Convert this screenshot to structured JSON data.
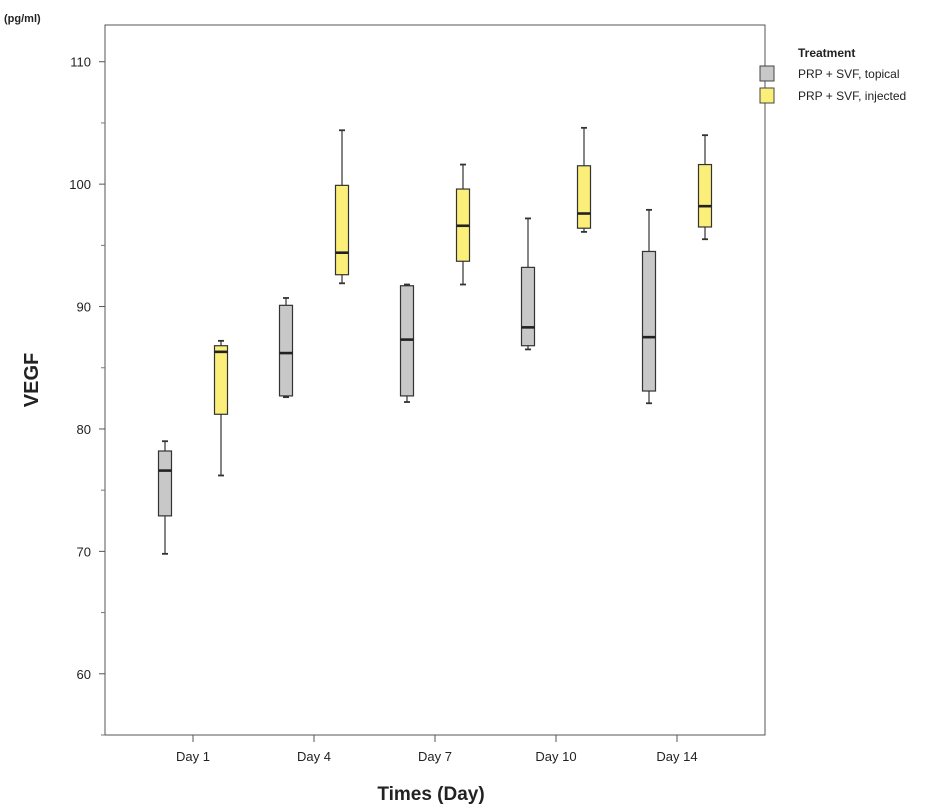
{
  "chart_data": {
    "type": "boxplot",
    "unit_label": "(pg/ml)",
    "ylabel": "VEGF",
    "xlabel": "Times (Day)",
    "ylim": [
      55,
      113
    ],
    "yticks": [
      60,
      70,
      80,
      90,
      100,
      110
    ],
    "categories": [
      "Day 1",
      "Day 4",
      "Day 7",
      "Day 10",
      "Day 14"
    ],
    "legend": {
      "title": "Treatment",
      "position": "right-top"
    },
    "series": [
      {
        "name": "PRP + SVF, topical",
        "color": "#c8c8c8",
        "boxes": [
          {
            "min": 69.8,
            "q1": 72.9,
            "median": 76.6,
            "q3": 78.2,
            "max": 79.0
          },
          {
            "min": 82.6,
            "q1": 82.7,
            "median": 86.2,
            "q3": 90.1,
            "max": 90.7
          },
          {
            "min": 82.2,
            "q1": 82.7,
            "median": 87.3,
            "q3": 91.7,
            "max": 91.8
          },
          {
            "min": 86.5,
            "q1": 86.8,
            "median": 88.3,
            "q3": 93.2,
            "max": 97.2
          },
          {
            "min": 82.1,
            "q1": 83.1,
            "median": 87.5,
            "q3": 94.5,
            "max": 97.9
          }
        ]
      },
      {
        "name": "PRP + SVF, injected",
        "color": "#fbef7a",
        "boxes": [
          {
            "min": 76.2,
            "q1": 81.2,
            "median": 86.3,
            "q3": 86.8,
            "max": 87.2
          },
          {
            "min": 91.9,
            "q1": 92.6,
            "median": 94.4,
            "q3": 99.9,
            "max": 104.4
          },
          {
            "min": 91.8,
            "q1": 93.7,
            "median": 96.6,
            "q3": 99.6,
            "max": 101.6
          },
          {
            "min": 96.1,
            "q1": 96.4,
            "median": 97.6,
            "q3": 101.5,
            "max": 104.6
          },
          {
            "min": 95.5,
            "q1": 96.5,
            "median": 98.2,
            "q3": 101.6,
            "max": 104.0
          }
        ]
      }
    ]
  }
}
